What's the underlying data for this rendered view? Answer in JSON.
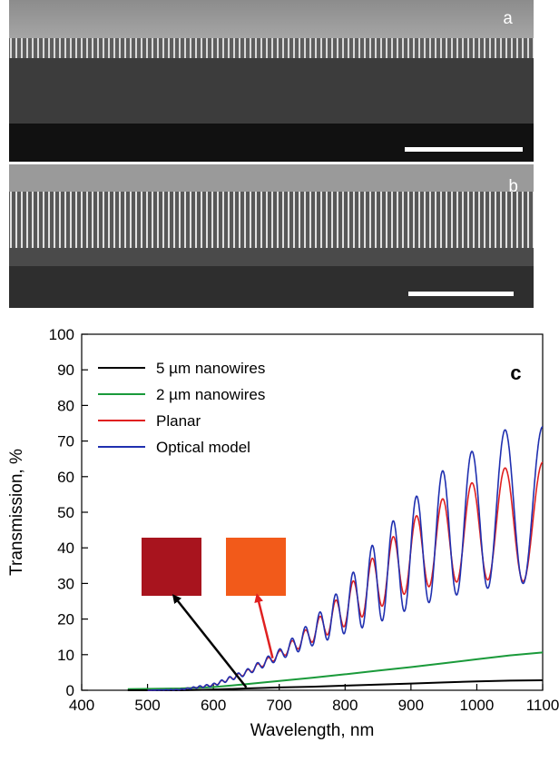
{
  "panels": {
    "a": {
      "label": "a"
    },
    "b": {
      "label": "b"
    },
    "c": {
      "label": "c"
    }
  },
  "chart_data": {
    "type": "line",
    "xlabel": "Wavelength, nm",
    "ylabel": "Transmission, %",
    "xlim": [
      400,
      1100
    ],
    "ylim": [
      0,
      100
    ],
    "xticks": [
      400,
      500,
      600,
      700,
      800,
      900,
      1000,
      1100
    ],
    "yticks": [
      0,
      10,
      20,
      30,
      40,
      50,
      60,
      70,
      80,
      90,
      100
    ],
    "legend_position": "top-left",
    "series": [
      {
        "name": "5 µm nanowires",
        "color": "#000000",
        "x": [
          470,
          550,
          600,
          650,
          700,
          750,
          800,
          850,
          900,
          950,
          1000,
          1050,
          1100
        ],
        "y": [
          0,
          0,
          0.2,
          0.5,
          0.8,
          1.0,
          1.3,
          1.6,
          1.9,
          2.2,
          2.5,
          2.7,
          2.8
        ]
      },
      {
        "name": "2 µm nanowires",
        "color": "#1a9a3a",
        "x": [
          470,
          550,
          600,
          650,
          700,
          750,
          800,
          850,
          900,
          950,
          1000,
          1050,
          1100
        ],
        "y": [
          0.3,
          0.5,
          0.9,
          1.7,
          2.6,
          3.5,
          4.5,
          5.5,
          6.5,
          7.6,
          8.7,
          9.8,
          10.6
        ]
      },
      {
        "name": "Planar",
        "color": "#e02020",
        "x": [
          500,
          550,
          600,
          650,
          700,
          750,
          800,
          850,
          900,
          950,
          1000,
          1050,
          1100
        ],
        "y_mean": [
          0,
          0.2,
          1.5,
          5,
          10,
          16,
          23,
          31,
          38,
          42,
          45,
          47,
          47
        ],
        "y_amplitude": [
          0,
          0.1,
          0.3,
          0.6,
          1.0,
          2.5,
          5,
          8,
          10,
          12,
          14,
          16,
          17
        ]
      },
      {
        "name": "Optical model",
        "color": "#2030b0",
        "x": [
          500,
          550,
          600,
          650,
          700,
          750,
          800,
          850,
          900,
          950,
          1000,
          1050,
          1100
        ],
        "y_mean": [
          0,
          0.2,
          1.5,
          5,
          10,
          16,
          23,
          31,
          38,
          44,
          48,
          52,
          52
        ],
        "y_amplitude": [
          0,
          0.1,
          0.4,
          0.8,
          1.5,
          3.5,
          7,
          12,
          15,
          18,
          20,
          22,
          22
        ]
      }
    ],
    "annotations": [
      {
        "type": "swatch",
        "color": "#a8141e",
        "points_to": {
          "x": 650,
          "y": 0.8
        },
        "arrow_color": "#000000"
      },
      {
        "type": "swatch",
        "color": "#f25a1a",
        "points_to": {
          "x": 690,
          "y": 9
        },
        "arrow_color": "#e02020"
      }
    ]
  }
}
